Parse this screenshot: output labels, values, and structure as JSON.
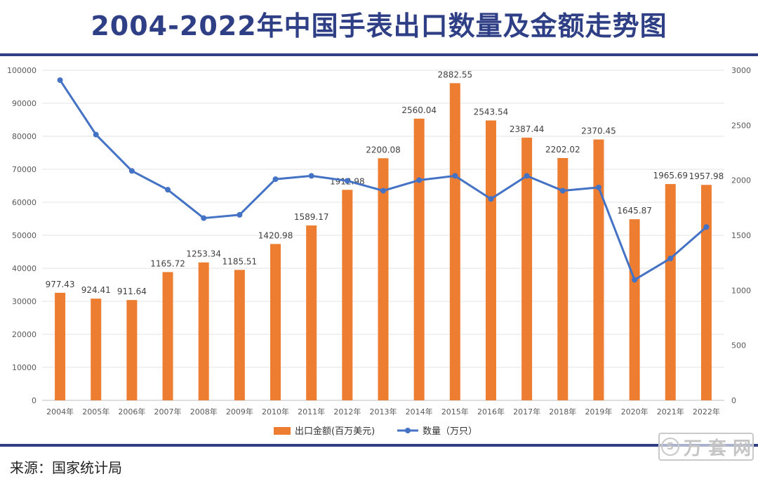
{
  "title": "2004-2022年中国手表出口数量及金额走势图",
  "source": "来源：国家统计局",
  "watermark": {
    "text": "万 套 网",
    "logo": "S"
  },
  "colors": {
    "bar": "#ed7d31",
    "line": "#4472c4",
    "brand": "#2f3f86"
  },
  "chart_data": {
    "type": "bar",
    "categories": [
      "2004年",
      "2005年",
      "2006年",
      "2007年",
      "2008年",
      "2009年",
      "2010年",
      "2011年",
      "2012年",
      "2013年",
      "2014年",
      "2015年",
      "2016年",
      "2017年",
      "2018年",
      "2019年",
      "2020年",
      "2021年",
      "2022年"
    ],
    "series": [
      {
        "name": "出口金额(百万美元)",
        "type": "bar",
        "axis": "left",
        "values": [
          977.43,
          924.41,
          911.64,
          1165.72,
          1253.34,
          1185.51,
          1420.98,
          1589.17,
          1912.98,
          2200.08,
          2560.04,
          2882.55,
          2543.54,
          2387.44,
          2202.02,
          2370.45,
          1645.87,
          1965.69,
          1957.98
        ],
        "labels": [
          "977.43",
          "924.41",
          "911.64",
          "1165.72",
          "1253.34",
          "1185.51",
          "1420.98",
          "1589.17",
          "1912.98",
          "2200.08",
          "2560.04",
          "2882.55",
          "2543.54",
          "2387.44",
          "2202.02",
          "2370.45",
          "1645.87",
          "1965.69",
          "1957.98"
        ]
      },
      {
        "name": "数量（万只）",
        "type": "line",
        "axis": "left",
        "values": [
          97000,
          80500,
          69500,
          63800,
          55200,
          56200,
          67000,
          68000,
          66500,
          63500,
          66700,
          68000,
          61000,
          68000,
          63500,
          64500,
          36500,
          43000,
          52500
        ]
      }
    ],
    "left_axis": {
      "min": 0,
      "max": 100000,
      "ticks": [
        0,
        10000,
        20000,
        30000,
        40000,
        50000,
        60000,
        70000,
        80000,
        90000,
        100000
      ]
    },
    "right_axis": {
      "min": 0,
      "max": 3000,
      "ticks": [
        0,
        500,
        1000,
        1500,
        2000,
        2500,
        3000
      ]
    },
    "legend": {
      "position": "bottom",
      "items": [
        "出口金额(百万美元)",
        "数量（万只）"
      ]
    },
    "grid": true
  }
}
